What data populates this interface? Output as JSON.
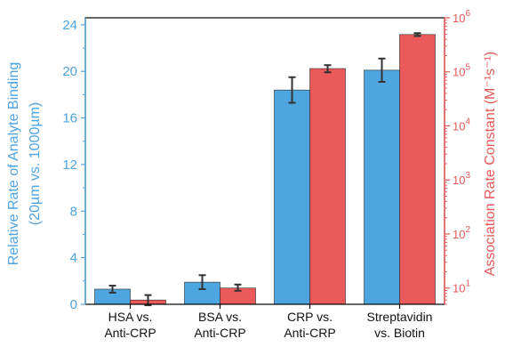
{
  "colors": {
    "left_axis": "#4fa3e0",
    "right_axis": "#e85858",
    "bar_left": "#4ea6e0",
    "bar_right": "#eb5a5a",
    "error_bar": "#333333",
    "frame": "#000000"
  },
  "chart_data": {
    "type": "bar",
    "categories": [
      [
        "HSA vs.",
        "Anti-CRP"
      ],
      [
        "BSA vs.",
        "Anti-CRP"
      ],
      [
        "CRP vs.",
        "Anti-CRP"
      ],
      [
        "Streptavidin",
        "vs. Biotin"
      ]
    ],
    "left_axis": {
      "label": "Relative Rate of Analyte Binding",
      "label_line2": "(20µm vs. 1000µm)",
      "scale": "linear",
      "ylim": [
        0,
        24.6
      ],
      "ticks": [
        0,
        4,
        8,
        12,
        16,
        20,
        24
      ],
      "tick_labels": [
        "0",
        "4",
        "8",
        "12",
        "16",
        "20",
        "24"
      ]
    },
    "right_axis": {
      "label": "Association Rate Constant (M⁻¹s⁻¹)",
      "scale": "log",
      "ylim": [
        5,
        1000000
      ],
      "ticks": [
        10,
        100,
        1000,
        10000,
        100000,
        1000000
      ],
      "tick_labels": [
        "10",
        "10",
        "10",
        "10",
        "10",
        "10"
      ],
      "tick_exponents": [
        "1",
        "2",
        "3",
        "4",
        "5",
        "6"
      ]
    },
    "series": [
      {
        "axis": "left",
        "color": "#4ea6e0",
        "values": [
          1.3,
          1.9,
          18.4,
          20.1
        ],
        "errors": [
          0.3,
          0.6,
          1.1,
          1.0
        ]
      },
      {
        "axis": "right",
        "color": "#eb5a5a",
        "values": [
          6,
          10,
          115000,
          490000
        ],
        "err_low": [
          4.8,
          8.9,
          98000,
          460000
        ],
        "err_high": [
          7.4,
          11.6,
          133000,
          520000
        ]
      }
    ],
    "grid": false,
    "legend": "none"
  }
}
